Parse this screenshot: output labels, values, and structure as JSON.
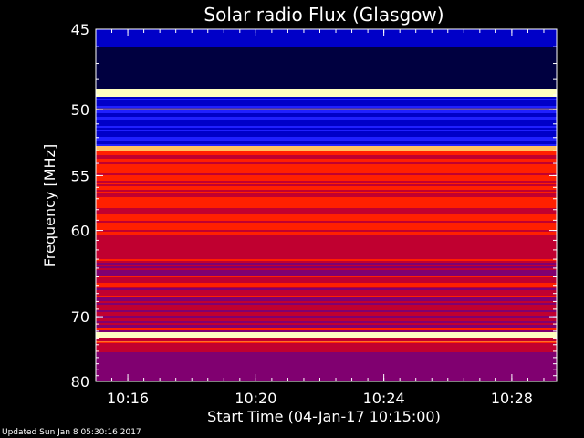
{
  "chart_data": {
    "type": "heatmap",
    "title": "Solar radio Flux (Glasgow)",
    "ylabel": "Frequency [MHz]",
    "xlabel": "Start Time (04-Jan-17 10:15:00)",
    "x_tick_labels": [
      "10:16",
      "10:20",
      "10:24",
      "10:28"
    ],
    "x_tick_minutes": [
      1,
      5,
      9,
      13
    ],
    "x_range_minutes": [
      0,
      14.4
    ],
    "y_tick_labels": [
      "45",
      "50",
      "55",
      "60",
      "70",
      "80"
    ],
    "y_tick_values": [
      45,
      50,
      55,
      60,
      70,
      80
    ],
    "y_range": [
      45,
      80
    ],
    "y_scale": "reciprocal",
    "colormap": [
      "#000040",
      "#0000c8",
      "#2020ff",
      "#800070",
      "#c00030",
      "#ff2000",
      "#ffc060",
      "#ffffc0"
    ]
  },
  "footer": {
    "updated": "Updated Sun Jan  8 05:30:16 2017"
  }
}
